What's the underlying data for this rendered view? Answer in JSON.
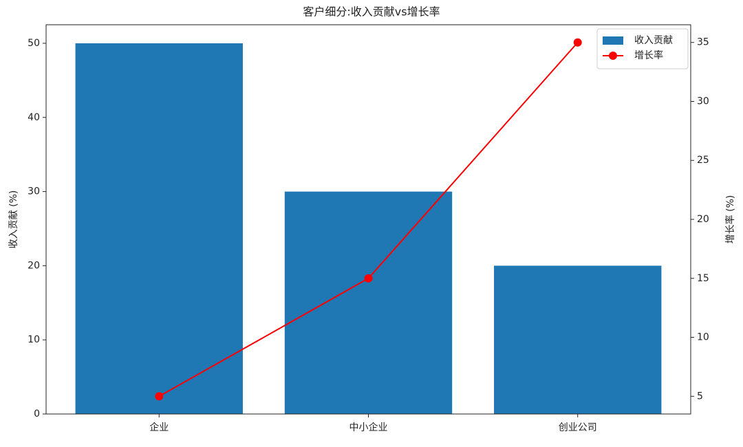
{
  "chart_data": {
    "type": "bar",
    "title": "客户细分:收入贡献vs增长率",
    "categories": [
      "企业",
      "中小企业",
      "创业公司"
    ],
    "series": [
      {
        "name": "收入贡献",
        "color": "#1f77b4",
        "type": "bar",
        "values": [
          50,
          30,
          20
        ]
      },
      {
        "name": "增长率",
        "color": "#ff0000",
        "type": "line",
        "axis": "y2",
        "values": [
          5,
          15,
          35
        ]
      }
    ],
    "ylabel": "收入贡献 (%)",
    "y2label": "增长率 (%)",
    "ylim": [
      0,
      52.5
    ],
    "yticks": [
      0,
      10,
      20,
      30,
      40,
      50
    ],
    "y2lim": [
      3.5,
      36.5
    ],
    "y2ticks": [
      5,
      10,
      15,
      20,
      25,
      30,
      35
    ],
    "legend": "upper right"
  }
}
